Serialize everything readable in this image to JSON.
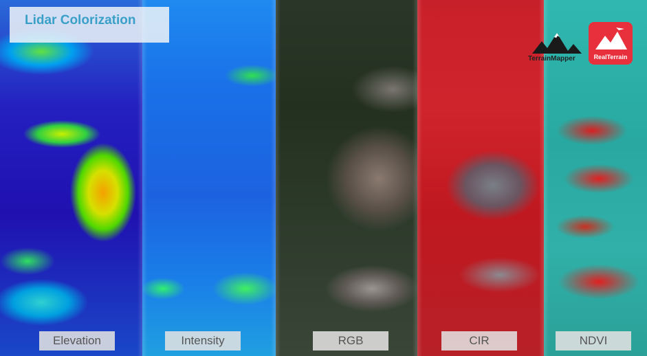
{
  "title": "Lidar Colorization",
  "panels": [
    {
      "label": "Elevation"
    },
    {
      "label": "Intensity"
    },
    {
      "label": "RGB"
    },
    {
      "label": "CIR"
    },
    {
      "label": "NDVI"
    }
  ],
  "logos": [
    {
      "label": "TerrainMapper"
    },
    {
      "label": "RealTerrain"
    }
  ]
}
